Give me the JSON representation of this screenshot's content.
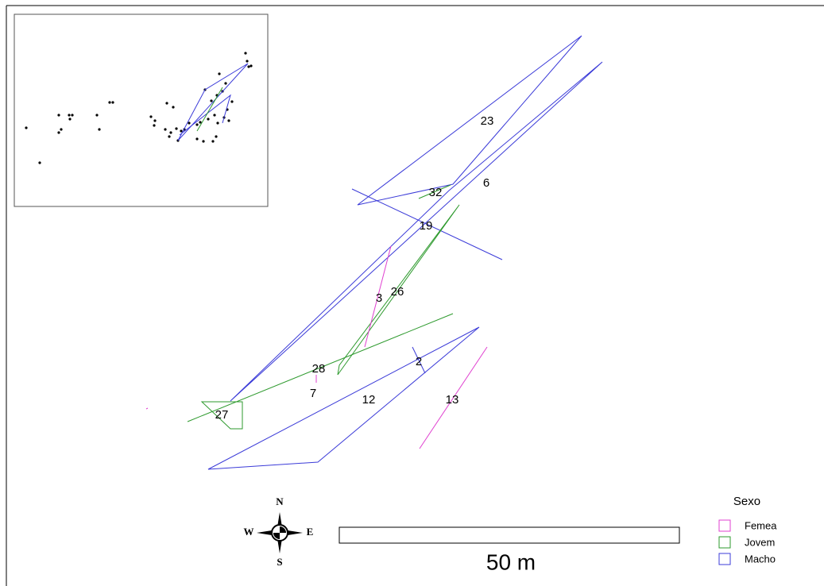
{
  "track_labels": [
    "23",
    "32",
    "6",
    "19",
    "3",
    "26",
    "28",
    "2",
    "7",
    "12",
    "13",
    "27"
  ],
  "compass": {
    "north": "N",
    "south": "S",
    "east": "E",
    "west": "W"
  },
  "scale_bar": {
    "label": "50 m"
  },
  "legend": {
    "title": "Sexo",
    "items": [
      "Femea",
      "Jovem",
      "Macho"
    ]
  }
}
